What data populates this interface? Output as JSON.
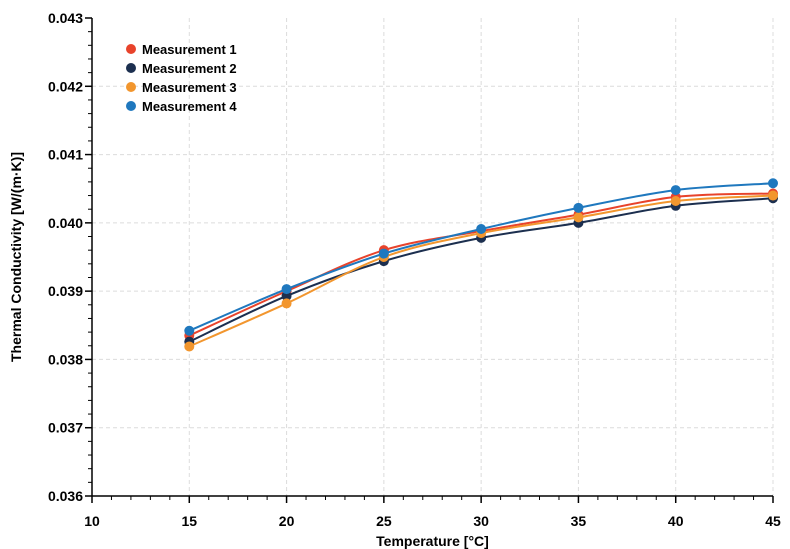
{
  "chart_data": {
    "type": "line",
    "xlabel": "Temperature [°C]",
    "ylabel": "Thermal Conductivity [W/(m·K)]",
    "xlim": [
      10,
      45
    ],
    "ylim": [
      0.036,
      0.043
    ],
    "x_ticks": [
      "10",
      "15",
      "20",
      "25",
      "30",
      "35",
      "40",
      "45"
    ],
    "y_ticks": [
      "0.036",
      "0.037",
      "0.038",
      "0.039",
      "0.040",
      "0.041",
      "0.042",
      "0.043"
    ],
    "grid": true,
    "legend_position": "top-left",
    "x": [
      15,
      20,
      25,
      30,
      35,
      40,
      45
    ],
    "series": [
      {
        "name": "Measurement 1",
        "color": "#e8432b",
        "values": [
          0.03835,
          0.039,
          0.0396,
          0.03988,
          0.04012,
          0.04038,
          0.04043
        ]
      },
      {
        "name": "Measurement 2",
        "color": "#1c2f4f",
        "values": [
          0.03826,
          0.03893,
          0.03944,
          0.03978,
          0.04,
          0.04025,
          0.04036
        ]
      },
      {
        "name": "Measurement 3",
        "color": "#f2962e",
        "values": [
          0.03819,
          0.03882,
          0.0395,
          0.03985,
          0.04008,
          0.04032,
          0.0404
        ]
      },
      {
        "name": "Measurement 4",
        "color": "#1f78be",
        "values": [
          0.03842,
          0.03903,
          0.03955,
          0.03991,
          0.04022,
          0.04048,
          0.04058
        ]
      }
    ]
  }
}
